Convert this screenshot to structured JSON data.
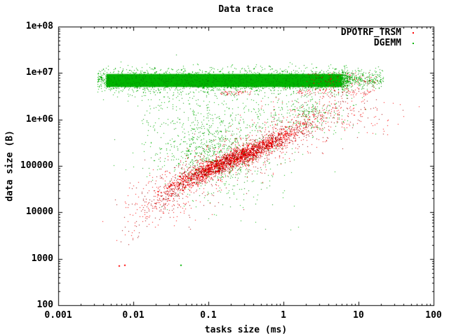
{
  "chart_data": {
    "type": "scatter",
    "title": "Data trace",
    "xlabel": "tasks size (ms)",
    "ylabel": "data size (B)",
    "x_scale": "log10",
    "y_scale": "log10",
    "xlim": [
      0.001,
      100
    ],
    "ylim": [
      100,
      100000000
    ],
    "grid": false,
    "background_color": "#ffffff",
    "border_color": "#000000",
    "legend_position": "top-right-inside",
    "x_ticks": [
      {
        "value": 0.001,
        "label": "0.001"
      },
      {
        "value": 0.01,
        "label": "0.01"
      },
      {
        "value": 0.1,
        "label": "0.1"
      },
      {
        "value": 1,
        "label": "1"
      },
      {
        "value": 10,
        "label": "10"
      },
      {
        "value": 100,
        "label": "100"
      }
    ],
    "y_ticks": [
      {
        "value": 100,
        "label": "100"
      },
      {
        "value": 1000,
        "label": "1000"
      },
      {
        "value": 10000,
        "label": "10000"
      },
      {
        "value": 100000,
        "label": "100000"
      },
      {
        "value": 1000000,
        "label": "1e+06"
      },
      {
        "value": 10000000,
        "label": "1e+07"
      },
      {
        "value": 100000000,
        "label": "1e+08"
      }
    ],
    "series": [
      {
        "name": "DPOTRF_TRSM",
        "marker": "dot",
        "colors": [
          "#ff0000",
          "#a00000"
        ],
        "dark_fraction": 0.42,
        "clusters": [
          {
            "kind": "path",
            "anchors": [
              [
                -2.14,
                3.37
              ],
              [
                -1.86,
                3.9
              ],
              [
                -1.49,
                4.5
              ],
              [
                -1.11,
                4.83
              ],
              [
                -0.69,
                5.14
              ],
              [
                -0.27,
                5.41
              ],
              [
                0.15,
                5.78
              ],
              [
                0.52,
                6.19
              ],
              [
                0.8,
                6.34
              ]
            ],
            "sigma": 0.09,
            "count": 2800,
            "t": "gauss",
            "tmu": 0.56,
            "tsigma": 0.13,
            "size": 1
          },
          {
            "kind": "path",
            "anchors": [
              [
                -2.14,
                3.37
              ],
              [
                -1.86,
                3.9
              ],
              [
                -1.49,
                4.5
              ],
              [
                -1.11,
                4.83
              ],
              [
                -0.69,
                5.14
              ],
              [
                -0.27,
                5.41
              ],
              [
                0.15,
                5.78
              ],
              [
                0.52,
                6.19
              ],
              [
                0.8,
                6.34
              ]
            ],
            "sigma": 0.27,
            "count": 950,
            "t": "uniform",
            "trange": [
              0.18,
              1.0
            ],
            "size": 1
          },
          {
            "kind": "path",
            "anchors": [
              [
                -2.14,
                3.37
              ],
              [
                -1.86,
                3.9
              ],
              [
                -1.49,
                4.5
              ],
              [
                -1.11,
                4.83
              ],
              [
                -0.69,
                5.14
              ],
              [
                -0.27,
                5.41
              ],
              [
                0.15,
                5.78
              ],
              [
                0.52,
                6.19
              ],
              [
                0.8,
                6.34
              ]
            ],
            "sigma": 0.1,
            "count": 120,
            "t": "powhigh",
            "trange": [
              0.0,
              0.42
            ],
            "tpow": 1.8,
            "size": 1
          },
          {
            "kind": "uniform",
            "logx": [
              -0.85,
              -0.42
            ],
            "logy": [
              6.54,
              6.62
            ],
            "count": 45,
            "size": 1
          },
          {
            "kind": "uniform",
            "logx": [
              0.18,
              1.22
            ],
            "logy": [
              6.53,
              6.66
            ],
            "count": 90,
            "size": 1
          },
          {
            "kind": "uniform",
            "logx": [
              0.3,
              1.25
            ],
            "logy": [
              6.68,
              7.02
            ],
            "count": 90,
            "size": 1
          },
          {
            "kind": "gauss",
            "logx": 1.0,
            "logy": 6.15,
            "sx": 0.3,
            "sy": 0.25,
            "count": 70,
            "size": 1
          },
          {
            "kind": "gauss",
            "logx": -2.15,
            "logy": 2.85,
            "sx": 0.03,
            "sy": 0.06,
            "count": 2,
            "size": 2
          }
        ]
      },
      {
        "name": "DGEMM",
        "marker": "dot",
        "colors": [
          "#00b400",
          "#009000"
        ],
        "dark_fraction": 0.28,
        "clusters": [
          {
            "kind": "block",
            "logx": [
              -2.36,
              0.78
            ],
            "logy": [
              6.7,
              6.98
            ]
          },
          {
            "kind": "uniform",
            "logx": [
              -2.36,
              0.78
            ],
            "logy": [
              6.7,
              6.98
            ],
            "count": 1500,
            "size": 1
          },
          {
            "kind": "hband",
            "logx": [
              -2.48,
              0.86
            ],
            "mu": 6.84,
            "sigma": 0.13,
            "count": 2600,
            "size": 1
          },
          {
            "kind": "hband",
            "logx": [
              0.78,
              1.33
            ],
            "mu": 6.88,
            "sigma": 0.1,
            "count": 420,
            "xpow": 1.8,
            "size": 1
          },
          {
            "kind": "gauss",
            "logx": -0.92,
            "logy": 5.32,
            "sx": 0.4,
            "sy": 0.48,
            "count": 950,
            "size": 1
          },
          {
            "kind": "gauss",
            "logx": 0.3,
            "logy": 6.12,
            "sx": 0.32,
            "sy": 0.22,
            "count": 240,
            "size": 1
          },
          {
            "kind": "uniform",
            "logx": [
              -1.9,
              0.45
            ],
            "logy": [
              5.85,
              6.55
            ],
            "count": 150,
            "size": 1
          },
          {
            "kind": "gauss",
            "logx": -0.55,
            "logy": 4.1,
            "sx": 0.5,
            "sy": 0.3,
            "count": 8,
            "size": 1
          },
          {
            "kind": "gauss",
            "logx": -1.4,
            "logy": 2.85,
            "sx": 0.02,
            "sy": 0.03,
            "count": 1,
            "size": 2
          }
        ]
      }
    ]
  }
}
